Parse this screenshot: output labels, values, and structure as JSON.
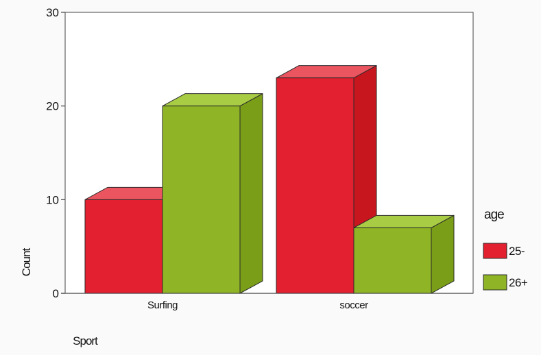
{
  "chart_data": {
    "type": "bar",
    "style": "3d-clustered",
    "categories": [
      "Surfing",
      "soccer"
    ],
    "series": [
      {
        "name": "25-",
        "values": [
          10,
          23
        ]
      },
      {
        "name": "26+",
        "values": [
          20,
          7
        ]
      }
    ],
    "xlabel": "Sport",
    "ylabel": "Count",
    "ylim": [
      0,
      30
    ],
    "yticks": [
      0,
      10,
      20,
      30
    ],
    "grid": false,
    "legend": {
      "title": "age",
      "position": "right",
      "entries": [
        "25-",
        "26+"
      ]
    },
    "colors": {
      "series_front": [
        "#e2202f",
        "#8fb526"
      ],
      "series_top": [
        "#eb5560",
        "#a9cc45"
      ],
      "series_side": [
        "#c8161f",
        "#7a9e18"
      ],
      "outline": "#2a2a2a",
      "axis": "#444444"
    }
  }
}
